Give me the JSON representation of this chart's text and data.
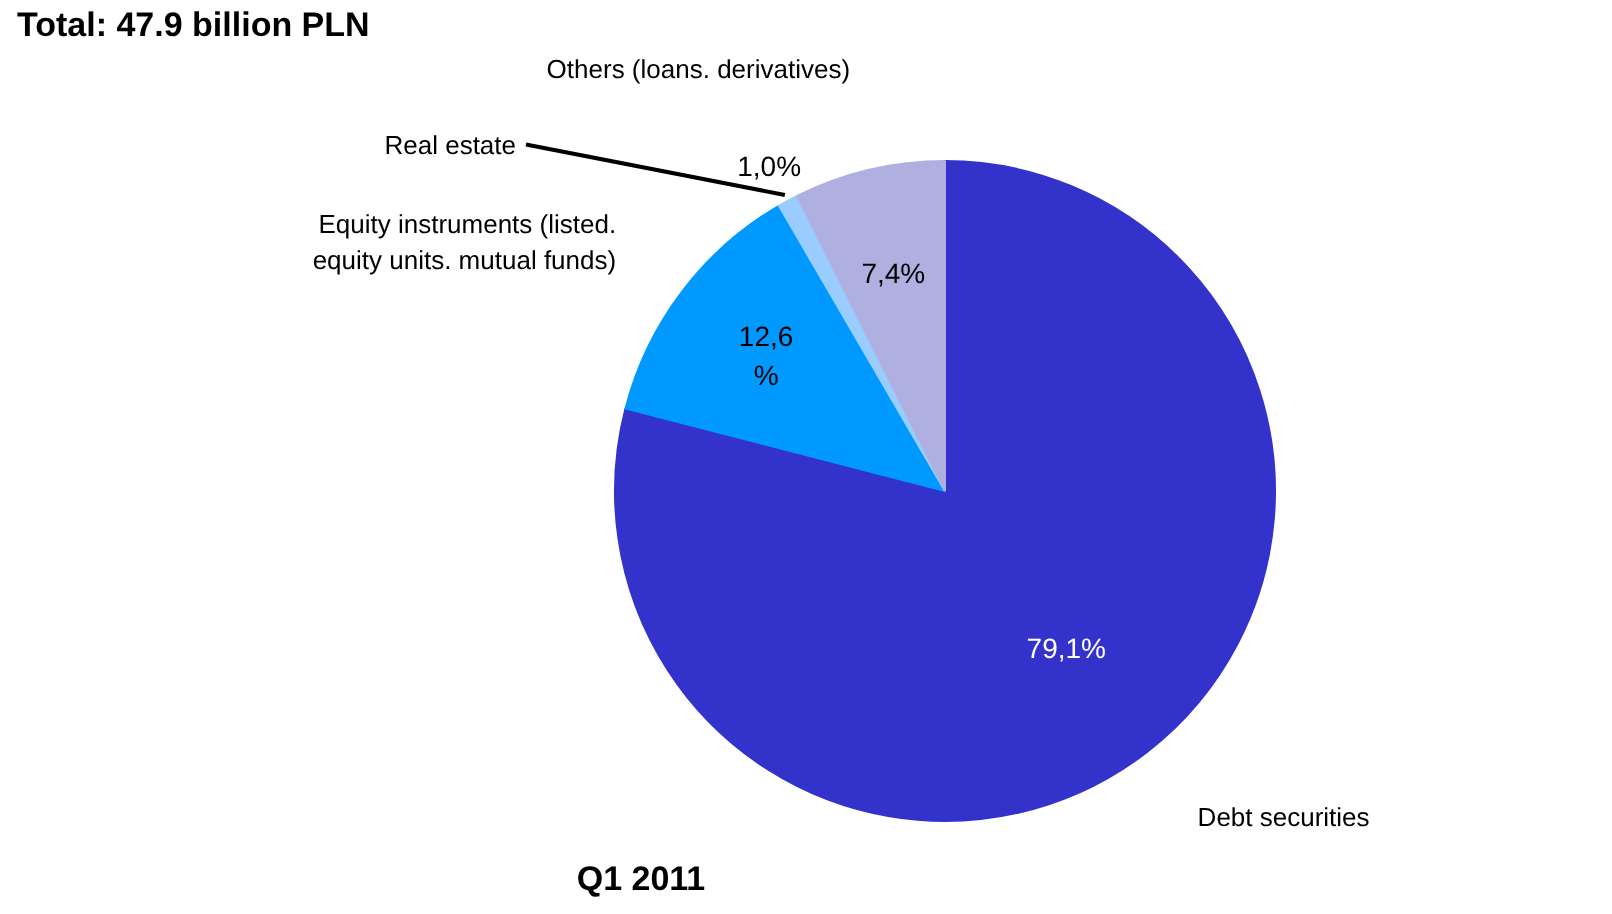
{
  "chart_data": {
    "type": "pie",
    "title": "Total: 47.9 billion PLN",
    "annotations": [
      "Q1 2011"
    ],
    "categories": [
      "Debt securities",
      "Equity instruments (listed. equity units. mutual funds)",
      "Real estate",
      "Others (loans. derivatives)"
    ],
    "values": [
      79.1,
      12.6,
      1.0,
      7.4
    ],
    "colors": [
      "#3333cc",
      "#0099ff",
      "#99ccff",
      "#b0b0e0"
    ],
    "value_labels": [
      "79,1%",
      "12,6 %",
      "1,0%",
      "7,4%"
    ]
  }
}
